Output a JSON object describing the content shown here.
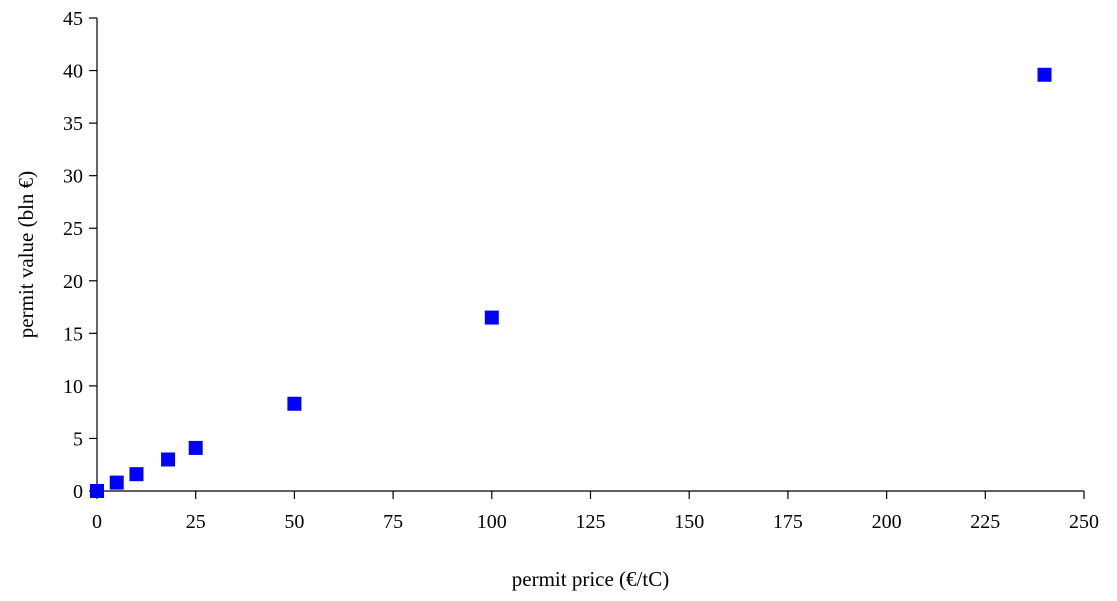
{
  "chart_data": {
    "type": "scatter",
    "title": "",
    "xlabel": "permit price (€/tC)",
    "ylabel": "permit value (bln €)",
    "xlim": [
      0,
      250
    ],
    "ylim": [
      0,
      45
    ],
    "x_ticks": [
      0,
      25,
      50,
      75,
      100,
      125,
      150,
      175,
      200,
      225,
      250
    ],
    "y_ticks": [
      0,
      5,
      10,
      15,
      20,
      25,
      30,
      35,
      40,
      45
    ],
    "grid": false,
    "legend": "none",
    "series": [
      {
        "color": "#0000ff",
        "marker": "square",
        "points": [
          {
            "x": 0,
            "y": 0
          },
          {
            "x": 5,
            "y": 0.8
          },
          {
            "x": 10,
            "y": 1.6
          },
          {
            "x": 18,
            "y": 3.0
          },
          {
            "x": 25,
            "y": 4.1
          },
          {
            "x": 50,
            "y": 8.3
          },
          {
            "x": 100,
            "y": 16.5
          },
          {
            "x": 240,
            "y": 39.6
          }
        ]
      }
    ]
  }
}
